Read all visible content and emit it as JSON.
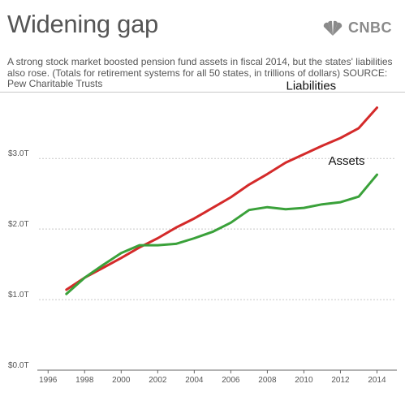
{
  "header": {
    "title": "Widening gap",
    "logo_text": "CNBC",
    "subtitle": "A strong stock market boosted pension fund assets in fiscal 2014, but the states' liabilities also rose. (Totals for retirement systems for all 50 states, in trillions of dollars) SOURCE: Pew Charitable Trusts"
  },
  "chart_data": {
    "type": "line",
    "title": "Widening gap",
    "xlabel": "",
    "ylabel": "",
    "x": [
      1997,
      1998,
      1999,
      2000,
      2001,
      2002,
      2003,
      2004,
      2005,
      2006,
      2007,
      2008,
      2009,
      2010,
      2011,
      2012,
      2013,
      2014
    ],
    "xlim": [
      1995.5,
      2015
    ],
    "ylim": [
      0,
      3.9
    ],
    "x_ticks": [
      1996,
      1998,
      2000,
      2002,
      2004,
      2006,
      2008,
      2010,
      2012,
      2014
    ],
    "x_tick_labels": [
      "1996",
      "1998",
      "2000",
      "2002",
      "2004",
      "2006",
      "2008",
      "2010",
      "2012",
      "2014"
    ],
    "y_ticks": [
      0,
      1,
      2,
      3
    ],
    "y_tick_labels": [
      "$0.0T",
      "$1.0T",
      "$2.0T",
      "$3.0T"
    ],
    "grid": "horizontal",
    "series": [
      {
        "name": "Liabilities",
        "color": "#d42a2a",
        "values": [
          1.14,
          1.31,
          1.45,
          1.59,
          1.74,
          1.87,
          2.02,
          2.15,
          2.3,
          2.45,
          2.63,
          2.78,
          2.94,
          3.06,
          3.18,
          3.29,
          3.43,
          3.72
        ]
      },
      {
        "name": "Assets",
        "color": "#3aa13a",
        "values": [
          1.08,
          1.31,
          1.49,
          1.66,
          1.77,
          1.77,
          1.79,
          1.87,
          1.96,
          2.09,
          2.27,
          2.31,
          2.28,
          2.3,
          2.35,
          2.38,
          2.46,
          2.77
        ]
      }
    ]
  }
}
